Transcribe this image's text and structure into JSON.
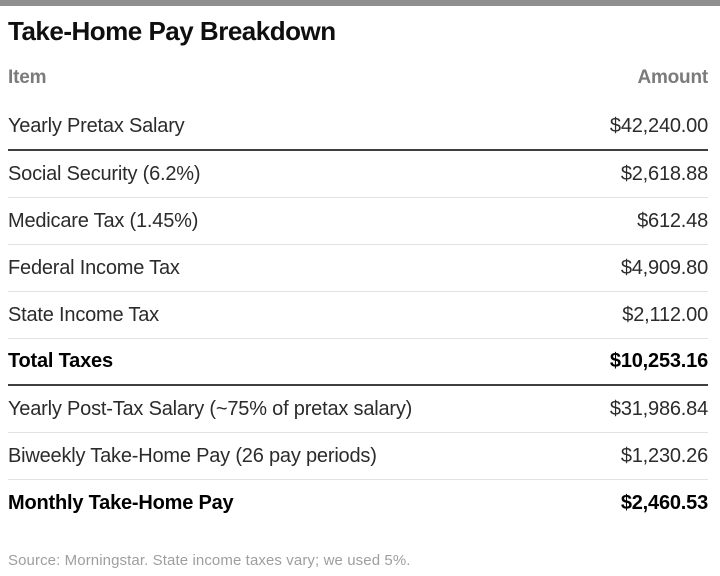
{
  "title": "Take-Home Pay Breakdown",
  "columns": {
    "item": "Item",
    "amount": "Amount"
  },
  "table": {
    "rows": [
      {
        "item": "Yearly Pretax Salary",
        "amount": "$42,240.00"
      },
      {
        "item": "Social Security (6.2%)",
        "amount": "$2,618.88"
      },
      {
        "item": "Medicare Tax (1.45%)",
        "amount": "$612.48"
      },
      {
        "item": "Federal Income Tax",
        "amount": "$4,909.80"
      },
      {
        "item": "State Income Tax",
        "amount": "$2,112.00"
      },
      {
        "item": "Total Taxes",
        "amount": "$10,253.16"
      },
      {
        "item": "Yearly Post-Tax Salary (~75% of pretax salary)",
        "amount": "$31,986.84"
      },
      {
        "item": "Biweekly Take-Home Pay (26 pay periods)",
        "amount": "$1,230.26"
      },
      {
        "item": "Monthly Take-Home Pay",
        "amount": "$2,460.53"
      }
    ]
  },
  "source": "Source: Morningstar. State income taxes vary; we used 5%.",
  "colors": {
    "top_bar": "#8f8f8f",
    "title_text": "#0f0f0f",
    "header_text": "#7b7b7b",
    "row_text": "#2b2b2b",
    "bold_row_text": "#000000",
    "dark_divider": "#3f3f3f",
    "light_divider": "#e2e2e2",
    "source_text": "#9e9e9e",
    "background": "#ffffff"
  },
  "chart_data": {
    "type": "table",
    "title": "Take-Home Pay Breakdown",
    "columns": [
      "Item",
      "Amount"
    ],
    "rows": [
      [
        "Yearly Pretax Salary",
        42240.0
      ],
      [
        "Social Security (6.2%)",
        2618.88
      ],
      [
        "Medicare Tax (1.45%)",
        612.48
      ],
      [
        "Federal Income Tax",
        4909.8
      ],
      [
        "State Income Tax",
        2112.0
      ],
      [
        "Total Taxes",
        10253.16
      ],
      [
        "Yearly Post-Tax Salary (~75% of pretax salary)",
        31986.84
      ],
      [
        "Biweekly Take-Home Pay (26 pay periods)",
        1230.26
      ],
      [
        "Monthly Take-Home Pay",
        2460.53
      ]
    ],
    "bold_rows": [
      "Total Taxes",
      "Monthly Take-Home Pay"
    ],
    "source": "Source: Morningstar. State income taxes vary; we used 5%."
  }
}
